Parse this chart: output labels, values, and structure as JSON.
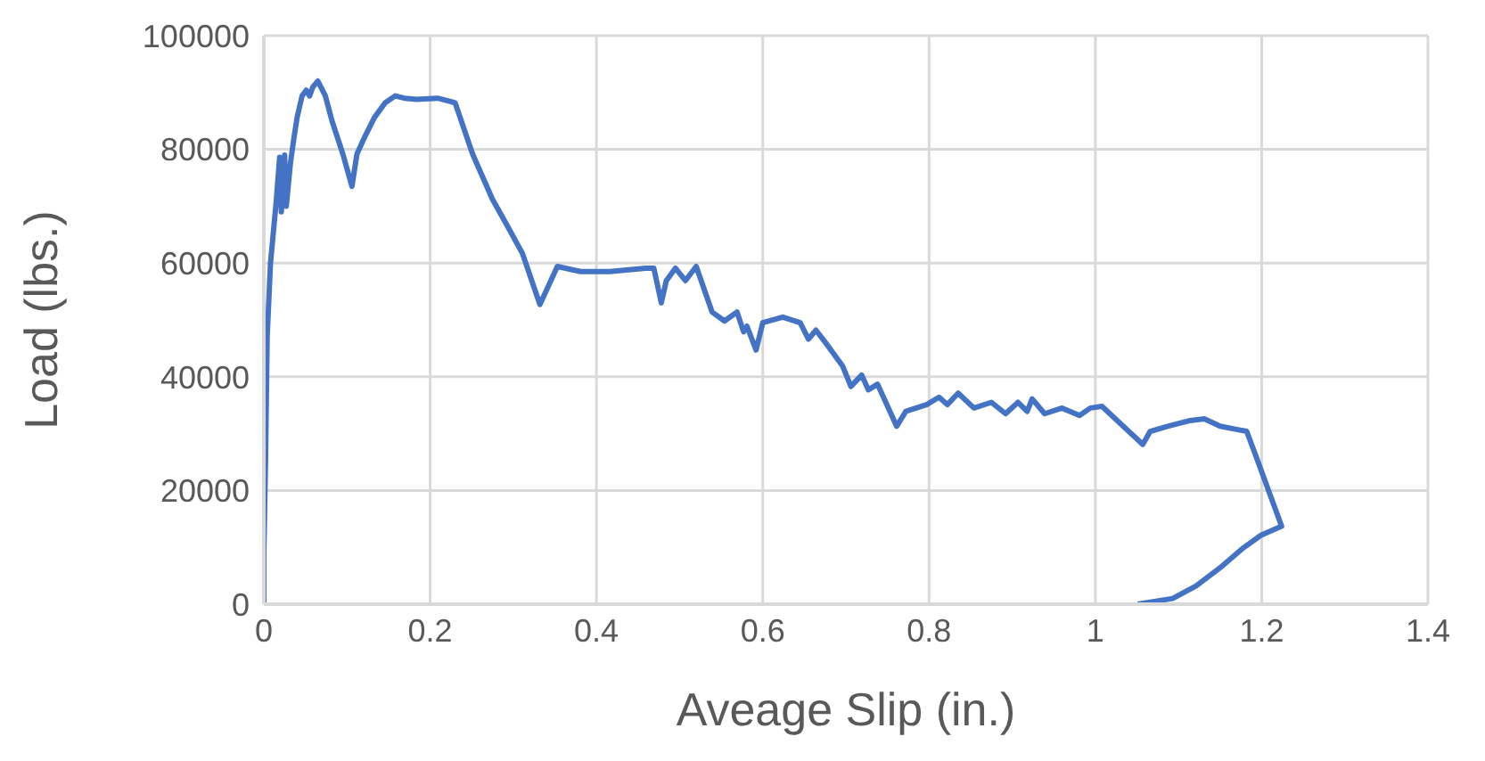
{
  "chart_data": {
    "type": "line",
    "xlabel": "Aveage Slip (in.)",
    "ylabel": "Load (lbs.)",
    "color": "#4472c4",
    "line_style": "solid",
    "marker": "none",
    "grid": true,
    "xlim": [
      0,
      1.4
    ],
    "xticks": [
      0,
      0.2,
      0.4,
      0.6,
      0.8,
      1,
      1.2,
      1.4
    ],
    "ylim": [
      0,
      100000
    ],
    "yticks": [
      0,
      20000,
      40000,
      60000,
      80000,
      100000
    ],
    "x": [
      0,
      0,
      0.002,
      0.004,
      0.008,
      0.015,
      0.019,
      0.021,
      0.025,
      0.027,
      0.032,
      0.036,
      0.04,
      0.046,
      0.051,
      0.055,
      0.059,
      0.065,
      0.074,
      0.082,
      0.095,
      0.106,
      0.112,
      0.122,
      0.133,
      0.146,
      0.158,
      0.169,
      0.184,
      0.209,
      0.23,
      0.251,
      0.275,
      0.293,
      0.311,
      0.332,
      0.353,
      0.381,
      0.416,
      0.459,
      0.469,
      0.478,
      0.484,
      0.495,
      0.507,
      0.52,
      0.539,
      0.554,
      0.569,
      0.577,
      0.581,
      0.592,
      0.6,
      0.624,
      0.645,
      0.655,
      0.664,
      0.677,
      0.696,
      0.706,
      0.719,
      0.727,
      0.738,
      0.761,
      0.772,
      0.797,
      0.812,
      0.822,
      0.835,
      0.854,
      0.875,
      0.892,
      0.907,
      0.918,
      0.924,
      0.939,
      0.96,
      0.981,
      0.994,
      1.008,
      1.057,
      1.066,
      1.087,
      1.114,
      1.131,
      1.15,
      1.171,
      1.182,
      1.192,
      1.224,
      1.199,
      1.178,
      1.15,
      1.121,
      1.093,
      1.051
    ],
    "values": [
      0,
      9000,
      25000,
      47000,
      60000,
      71000,
      78600,
      69000,
      79000,
      70000,
      77600,
      81800,
      85600,
      89400,
      90400,
      89400,
      91000,
      92000,
      89400,
      85000,
      79200,
      73500,
      79200,
      82400,
      85600,
      88200,
      89400,
      89000,
      88800,
      89000,
      88200,
      79200,
      71200,
      66500,
      61700,
      52700,
      59400,
      58500,
      58500,
      59100,
      59100,
      53000,
      56900,
      59100,
      56900,
      59400,
      51400,
      49800,
      51400,
      47900,
      48900,
      44700,
      49500,
      50500,
      49500,
      46600,
      48200,
      45700,
      41900,
      38300,
      40300,
      37700,
      38700,
      31300,
      33900,
      35100,
      36400,
      35100,
      37100,
      34500,
      35500,
      33500,
      35500,
      33900,
      36100,
      33500,
      34500,
      33200,
      34500,
      34800,
      28100,
      30400,
      31300,
      32300,
      32600,
      31300,
      30700,
      30400,
      26500,
      13700,
      12100,
      9900,
      6400,
      3200,
      1000,
      0
    ]
  }
}
